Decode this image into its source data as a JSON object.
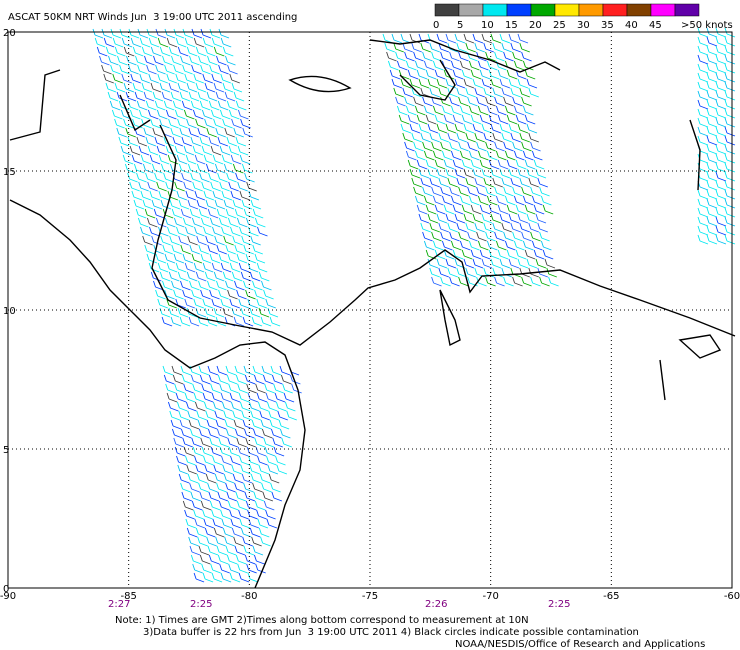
{
  "title": "ASCAT 50KM NRT Winds Jun  3 19:00 UTC 2011 ascending",
  "legend": {
    "labels": [
      "0",
      "5",
      "10",
      "15",
      "20",
      "25",
      "30",
      "35",
      "40",
      "45",
      ">50 knots"
    ],
    "colors": [
      "#404040",
      "#a8a8a8",
      "#00e8f0",
      "#0040ff",
      "#00a800",
      "#ffe800",
      "#ff9a00",
      "#ff2020",
      "#804000",
      "#ff00ff",
      "#6000a8"
    ]
  },
  "lon_range": [
    -90,
    -60
  ],
  "lat_range": [
    0,
    20
  ],
  "lon_ticks": [
    -90,
    -85,
    -80,
    -75,
    -70,
    -65,
    -60
  ],
  "lat_ticks": [
    20,
    15,
    10,
    5,
    0
  ],
  "pass_times": [
    "2:27",
    "2:25",
    "2:26",
    "2:25"
  ],
  "notes": [
    "Note: 1) Times are GMT 2)Times along bottom correspond to measurement at 10N",
    "3)Data buffer is 22 hrs from Jun  3 19:00 UTC 2011 4) Black circles indicate possible contamination",
    "NOAA/NESDIS/Office of Research and Applications"
  ]
}
